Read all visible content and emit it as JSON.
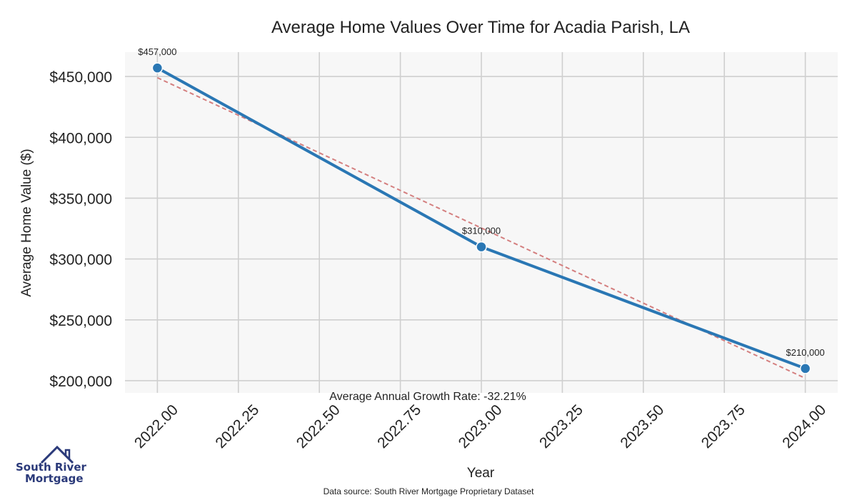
{
  "chart_data": {
    "type": "line",
    "title": "Average Home Values Over Time for Acadia Parish, LA",
    "xlabel": "Year",
    "ylabel": "Average Home Value ($)",
    "x": [
      2022,
      2023,
      2024
    ],
    "series": [
      {
        "values": [
          457000,
          310000,
          210000
        ],
        "color": "#2a77b4"
      }
    ],
    "data_labels": [
      "$457,000",
      "$310,000",
      "$210,000"
    ],
    "trendline": {
      "style": "dashed",
      "color": "#d47f7f",
      "start": 449000,
      "end": 202000
    },
    "x_ticks": [
      "2022.00",
      "2022.25",
      "2022.50",
      "2022.75",
      "2023.00",
      "2023.25",
      "2023.50",
      "2023.75",
      "2024.00"
    ],
    "y_ticks": [
      "$200,000",
      "$250,000",
      "$300,000",
      "$350,000",
      "$400,000",
      "$450,000"
    ],
    "xlim": [
      2021.9,
      2024.1
    ],
    "ylim": [
      190000,
      470000
    ],
    "grid": true,
    "annotation": "Average Annual Growth Rate: -32.21%",
    "source": "Data source: South River Mortgage Proprietary Dataset"
  },
  "logo": {
    "line1": "South River",
    "line2": "Mortgage",
    "icon": "house-roof-icon"
  }
}
